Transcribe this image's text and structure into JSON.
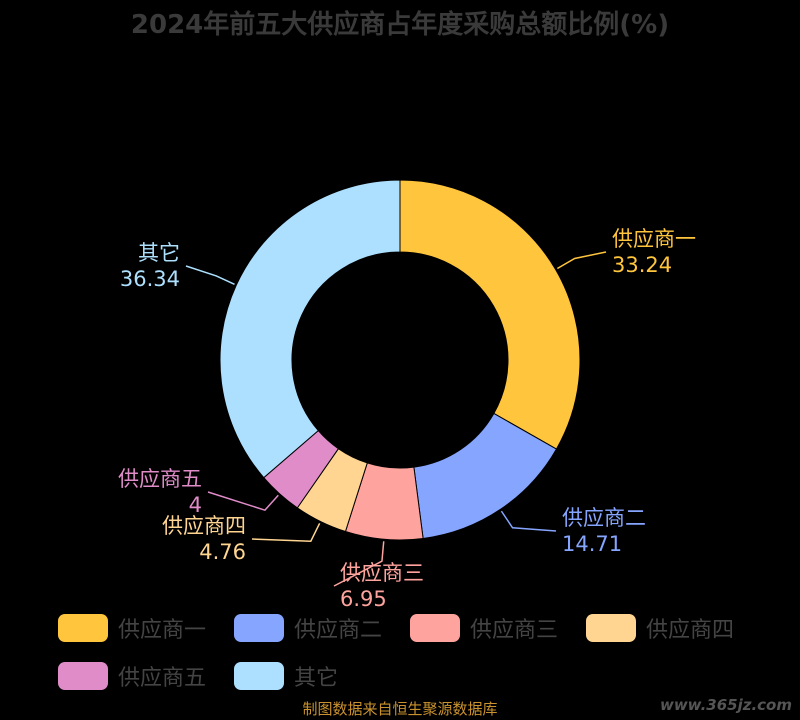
{
  "title": "2024年前五大供应商占年度采购总额比例(%)",
  "source": "制图数据来自恒生聚源数据库",
  "watermark": "www.365jz.com",
  "chart_data": {
    "type": "pie",
    "donut": true,
    "title": "2024年前五大供应商占年度采购总额比例(%)",
    "categories": [
      "供应商一",
      "供应商二",
      "供应商三",
      "供应商四",
      "供应商五",
      "其它"
    ],
    "values": [
      33.24,
      14.71,
      6.95,
      4.76,
      4,
      36.34
    ],
    "colors": [
      "#FFC53D",
      "#85A5FF",
      "#FFA39E",
      "#FFD591",
      "#E08CC8",
      "#ADE0FF"
    ],
    "value_labels": [
      "33.24",
      "14.71",
      "6.95",
      "4.76",
      "4",
      "36.34"
    ],
    "legend_position": "bottom"
  }
}
